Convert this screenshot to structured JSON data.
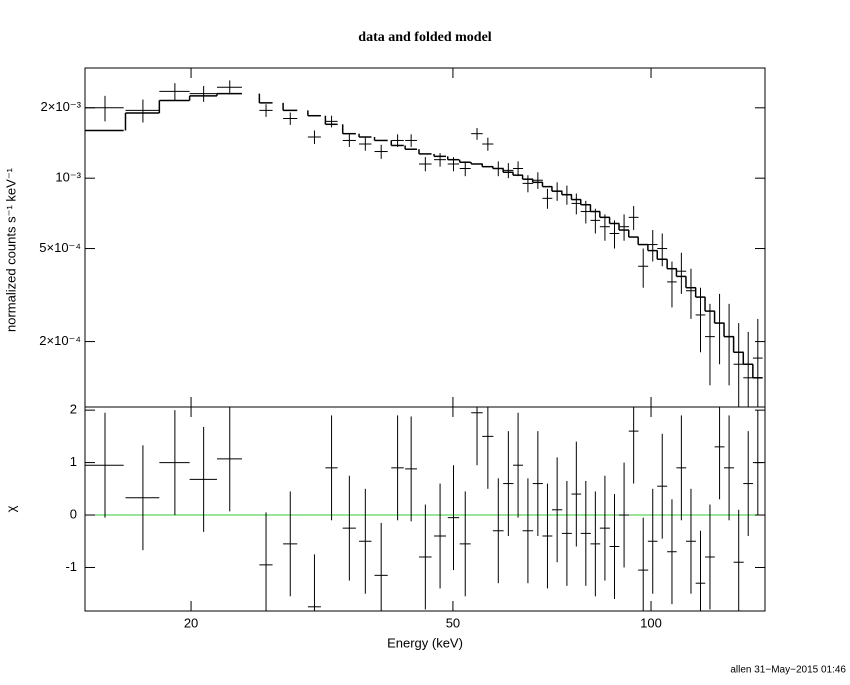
{
  "chart_data": {
    "type": "errorbar",
    "title": "data and folded model",
    "ylabel": "normalized counts s⁻¹ keV⁻¹",
    "residual_ylabel": "χ",
    "xlabel": "Energy (keV)",
    "annotation": "allen 31−May−2015 01:46",
    "log_x": true,
    "log_y": true,
    "xlim": [
      13.8,
      149
    ],
    "xticks": [
      20,
      50,
      100
    ],
    "ylim": [
      0.000105,
      0.00296
    ],
    "yticks": [
      {
        "value": 0.0002,
        "label": "2×10⁻⁴"
      },
      {
        "value": 0.0005,
        "label": "5×10⁻⁴"
      },
      {
        "value": 0.001,
        "label": "10⁻³"
      },
      {
        "value": 0.002,
        "label": "2×10⁻³"
      }
    ],
    "residual_ylim": [
      -1.83,
      2.06
    ],
    "residual_yticks": [
      -1,
      0,
      1,
      2
    ],
    "reference_line": 0,
    "data_color": "#000000",
    "model_color": "#000000",
    "reference_color": "#33cc33",
    "x": [
      14.8,
      16.9,
      18.9,
      20.9,
      22.9,
      26.0,
      28.3,
      30.8,
      32.7,
      34.8,
      36.8,
      38.9,
      41.2,
      43.2,
      45.4,
      47.8,
      50.1,
      52.2,
      54.4,
      56.5,
      58.6,
      60.7,
      62.8,
      65.0,
      67.3,
      69.6,
      72.0,
      74.5,
      77.0,
      79.6,
      82.3,
      85.1,
      88.0,
      91.0,
      94.1,
      97.3,
      100.6,
      104.0,
      107.6,
      111.2,
      115.0,
      118.9,
      122.9,
      127.1,
      131.4,
      135.9,
      140.5,
      145.3
    ],
    "xerr": [
      1.0,
      1.0,
      1.0,
      1.0,
      1.0,
      0.6,
      0.7,
      0.7,
      0.7,
      0.8,
      0.8,
      0.9,
      0.9,
      0.9,
      1.0,
      1.0,
      1.0,
      1.0,
      1.1,
      1.1,
      1.1,
      1.1,
      1.1,
      1.2,
      1.2,
      1.2,
      1.3,
      1.3,
      1.3,
      1.4,
      1.4,
      1.5,
      1.5,
      1.6,
      1.6,
      1.7,
      1.7,
      1.8,
      1.8,
      1.9,
      2.0,
      2.0,
      2.1,
      2.2,
      2.3,
      2.4,
      2.4,
      2.5
    ],
    "y": [
      0.002,
      0.00195,
      0.00235,
      0.0023,
      0.00245,
      0.00195,
      0.0018,
      0.0015,
      0.00175,
      0.00145,
      0.0014,
      0.0013,
      0.00145,
      0.00145,
      0.00115,
      0.0012,
      0.00115,
      0.0011,
      0.00155,
      0.0014,
      0.0011,
      0.00108,
      0.0011,
      0.00095,
      0.00098,
      0.00082,
      0.00088,
      0.00085,
      0.00078,
      0.00072,
      0.00066,
      0.00062,
      0.00058,
      0.00062,
      0.00068,
      0.00042,
      0.00052,
      0.0005,
      0.00036,
      0.0004,
      0.00033,
      0.00026,
      0.00021,
      0.00024,
      0.00021,
      0.00016,
      0.00014,
      0.00017
    ],
    "yerr": [
      0.00025,
      0.00022,
      0.0002,
      0.00018,
      0.00017,
      0.00012,
      0.00011,
      0.0001,
      0.0001,
      9e-05,
      9e-05,
      9e-05,
      9e-05,
      9e-05,
      8e-05,
      8e-05,
      8e-05,
      8e-05,
      9e-05,
      9e-05,
      8e-05,
      8e-05,
      8e-05,
      8e-05,
      8e-05,
      8e-05,
      8e-05,
      8e-05,
      8e-05,
      8e-05,
      8e-05,
      8e-05,
      8e-05,
      8e-05,
      8e-05,
      8e-05,
      8e-05,
      8e-05,
      8e-05,
      8e-05,
      8e-05,
      8e-05,
      8e-05,
      8e-05,
      8e-05,
      8e-05,
      8e-05,
      8e-05
    ],
    "model": [
      0.0016,
      0.0019,
      0.00215,
      0.00225,
      0.0023,
      0.0021,
      0.00195,
      0.00185,
      0.0017,
      0.00155,
      0.0015,
      0.00145,
      0.00138,
      0.00133,
      0.00127,
      0.00124,
      0.0012,
      0.00117,
      0.00115,
      0.00112,
      0.0011,
      0.00106,
      0.00103,
      0.00099,
      0.00096,
      0.00092,
      0.00088,
      0.00085,
      0.00081,
      0.00077,
      0.00072,
      0.00068,
      0.00064,
      0.0006,
      0.00056,
      0.00052,
      0.00049,
      0.00045,
      0.00041,
      0.00038,
      0.00034,
      0.00031,
      0.00027,
      0.00024,
      0.00021,
      0.00018,
      0.00016,
      0.00014
    ],
    "residuals": [
      0.95,
      0.33,
      1.0,
      0.68,
      1.07,
      -0.95,
      -0.55,
      -1.75,
      0.9,
      -0.25,
      -0.5,
      -1.15,
      0.9,
      0.88,
      -0.8,
      -0.4,
      -0.05,
      -0.55,
      1.95,
      1.5,
      -0.3,
      0.6,
      0.95,
      -0.3,
      0.6,
      -0.4,
      0.1,
      -0.35,
      0.4,
      -0.35,
      -0.55,
      -0.25,
      -0.6,
      0.0,
      1.6,
      -1.05,
      -0.5,
      0.55,
      -0.7,
      0.9,
      -0.5,
      -1.3,
      -0.8,
      1.3,
      0.9,
      -0.9,
      0.6,
      1.0
    ],
    "residual_err": [
      1,
      1,
      1,
      1,
      1,
      1,
      1,
      1,
      1,
      1,
      1,
      1,
      1,
      1,
      1,
      1,
      1,
      1,
      1,
      1,
      1,
      1,
      1,
      1,
      1,
      1,
      1,
      1,
      1,
      1,
      1,
      1,
      1,
      1,
      1,
      1,
      1,
      1,
      1,
      1,
      1,
      1,
      1,
      1,
      1,
      1,
      1,
      1
    ]
  }
}
